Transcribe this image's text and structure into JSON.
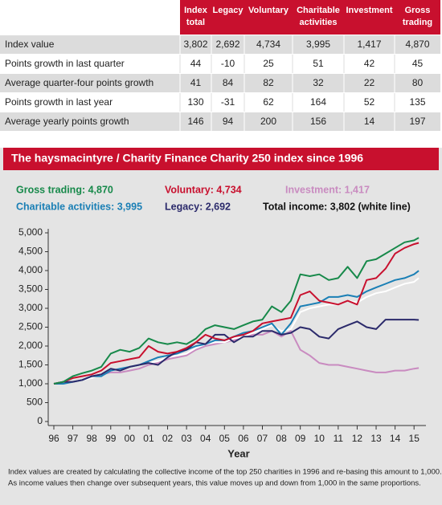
{
  "table": {
    "columns": [
      [
        "Index",
        "total"
      ],
      [
        "Legacy"
      ],
      [
        "Voluntary"
      ],
      [
        "Charitable",
        "activities"
      ],
      [
        "Investment"
      ],
      [
        "Gross",
        "trading"
      ]
    ],
    "rows": [
      {
        "label": "Index value",
        "cells": [
          "3,802",
          "2,692",
          "4,734",
          "3,995",
          "1,417",
          "4,870"
        ]
      },
      {
        "label": "Points growth in last quarter",
        "cells": [
          "44",
          "-10",
          "25",
          "51",
          "42",
          "45"
        ]
      },
      {
        "label": "Average quarter-four points growth",
        "cells": [
          "41",
          "84",
          "82",
          "32",
          "22",
          "80"
        ]
      },
      {
        "label": "Points growth in last year",
        "cells": [
          "130",
          "-31",
          "62",
          "164",
          "52",
          "135"
        ]
      },
      {
        "label": "Average yearly points growth",
        "cells": [
          "146",
          "94",
          "200",
          "156",
          "14",
          "197"
        ]
      }
    ]
  },
  "chart_data": {
    "type": "line",
    "title": "The haysmacintyre / Charity Finance Charity 250 index since 1996",
    "xlabel": "Year",
    "notes": [
      "Index values are created by calculating the collective income of the top 250 charities in 1996 and re-basing this amount to 1,000.",
      "As income values then change over subsequent years, this value moves up and down from 1,000 in the same proportions."
    ],
    "x": [
      1996,
      1996.5,
      1997,
      1997.5,
      1998,
      1998.5,
      1999,
      1999.5,
      2000,
      2000.5,
      2001,
      2001.5,
      2002,
      2002.5,
      2003,
      2003.5,
      2004,
      2004.5,
      2005,
      2005.5,
      2006,
      2006.5,
      2007,
      2007.5,
      2008,
      2008.5,
      2009,
      2009.5,
      2010,
      2010.5,
      2011,
      2011.5,
      2012,
      2012.5,
      2013,
      2013.5,
      2014,
      2014.5,
      2015,
      2015.25
    ],
    "xlim": [
      1996,
      2015.5
    ],
    "xticks": [
      {
        "value": 1996,
        "label": "96"
      },
      {
        "value": 1997,
        "label": "97"
      },
      {
        "value": 1998,
        "label": "98"
      },
      {
        "value": 1999,
        "label": "99"
      },
      {
        "value": 2000,
        "label": "00"
      },
      {
        "value": 2001,
        "label": "01"
      },
      {
        "value": 2002,
        "label": "02"
      },
      {
        "value": 2003,
        "label": "03"
      },
      {
        "value": 2004,
        "label": "04"
      },
      {
        "value": 2005,
        "label": "05"
      },
      {
        "value": 2006,
        "label": "06"
      },
      {
        "value": 2007,
        "label": "07"
      },
      {
        "value": 2008,
        "label": "08"
      },
      {
        "value": 2009,
        "label": "09"
      },
      {
        "value": 2010,
        "label": "10"
      },
      {
        "value": 2011,
        "label": "11"
      },
      {
        "value": 2012,
        "label": "12"
      },
      {
        "value": 2013,
        "label": "13"
      },
      {
        "value": 2014,
        "label": "14"
      },
      {
        "value": 2015,
        "label": "15"
      }
    ],
    "ylim": [
      0,
      5000
    ],
    "yticks": [
      0,
      500,
      {
        "value": 1000,
        "label": "1,000"
      },
      {
        "value": 1500,
        "label": "1,500"
      },
      {
        "value": 2000,
        "label": "2,000"
      },
      {
        "value": 2500,
        "label": "2,500"
      },
      {
        "value": 3000,
        "label": "3,000"
      },
      {
        "value": 3500,
        "label": "3,500"
      },
      {
        "value": 4000,
        "label": "4,000"
      },
      {
        "value": 4500,
        "label": "4,500"
      },
      {
        "value": 5000,
        "label": "5,000"
      }
    ],
    "series": [
      {
        "name": "Gross trading: 4,870",
        "color": "#17894a",
        "values": [
          1000,
          1050,
          1200,
          1280,
          1350,
          1450,
          1800,
          1900,
          1850,
          1950,
          2200,
          2100,
          2050,
          2100,
          2050,
          2200,
          2450,
          2550,
          2500,
          2450,
          2550,
          2650,
          2700,
          3050,
          2900,
          3200,
          3900,
          3850,
          3900,
          3750,
          3800,
          4100,
          3800,
          4250,
          4300,
          4450,
          4600,
          4750,
          4800,
          4870
        ]
      },
      {
        "name": "Voluntary: 4,734",
        "color": "#c8102e",
        "values": [
          1000,
          1050,
          1150,
          1200,
          1250,
          1350,
          1550,
          1600,
          1650,
          1700,
          2000,
          1850,
          1800,
          1850,
          1950,
          2100,
          2300,
          2200,
          2150,
          2250,
          2300,
          2400,
          2600,
          2650,
          2700,
          2750,
          3350,
          3450,
          3200,
          3150,
          3100,
          3200,
          3100,
          3750,
          3800,
          4050,
          4450,
          4600,
          4700,
          4734
        ]
      },
      {
        "name": "Investment: 1,417",
        "color": "#c98bc0",
        "values": [
          1000,
          1000,
          1050,
          1100,
          1200,
          1250,
          1300,
          1300,
          1350,
          1400,
          1500,
          1550,
          1650,
          1700,
          1750,
          1900,
          2000,
          2050,
          2100,
          2150,
          2250,
          2300,
          2300,
          2400,
          2250,
          2400,
          1900,
          1750,
          1550,
          1500,
          1500,
          1450,
          1400,
          1350,
          1300,
          1300,
          1350,
          1350,
          1400,
          1417
        ]
      },
      {
        "name": "Charitable activities: 3,995",
        "color": "#1a7fb5",
        "values": [
          1000,
          1000,
          1050,
          1100,
          1200,
          1200,
          1350,
          1400,
          1450,
          1500,
          1600,
          1700,
          1750,
          1800,
          1900,
          2000,
          2050,
          2150,
          2150,
          2250,
          2350,
          2400,
          2500,
          2600,
          2300,
          2600,
          3050,
          3100,
          3150,
          3300,
          3300,
          3350,
          3300,
          3450,
          3550,
          3650,
          3750,
          3800,
          3900,
          3995
        ]
      },
      {
        "name": "Legacy: 2,692",
        "color": "#2b2a6b",
        "values": [
          1000,
          1050,
          1050,
          1100,
          1200,
          1250,
          1400,
          1350,
          1450,
          1500,
          1550,
          1500,
          1700,
          1850,
          1900,
          2100,
          2050,
          2300,
          2300,
          2100,
          2250,
          2250,
          2400,
          2400,
          2300,
          2350,
          2500,
          2450,
          2250,
          2200,
          2450,
          2550,
          2650,
          2500,
          2450,
          2700,
          2700,
          2700,
          2700,
          2692
        ]
      },
      {
        "name": "Total income: 3,802 (white line)",
        "color": "#ffffff",
        "values": [
          1000,
          1000,
          1050,
          1100,
          1150,
          1250,
          1350,
          1400,
          1450,
          1500,
          1550,
          1600,
          1700,
          1750,
          1800,
          1950,
          2050,
          2100,
          2100,
          2200,
          2250,
          2350,
          2450,
          2550,
          2400,
          2450,
          2900,
          3000,
          3050,
          3100,
          3100,
          3200,
          3150,
          3300,
          3400,
          3450,
          3550,
          3650,
          3700,
          3802
        ]
      }
    ]
  }
}
